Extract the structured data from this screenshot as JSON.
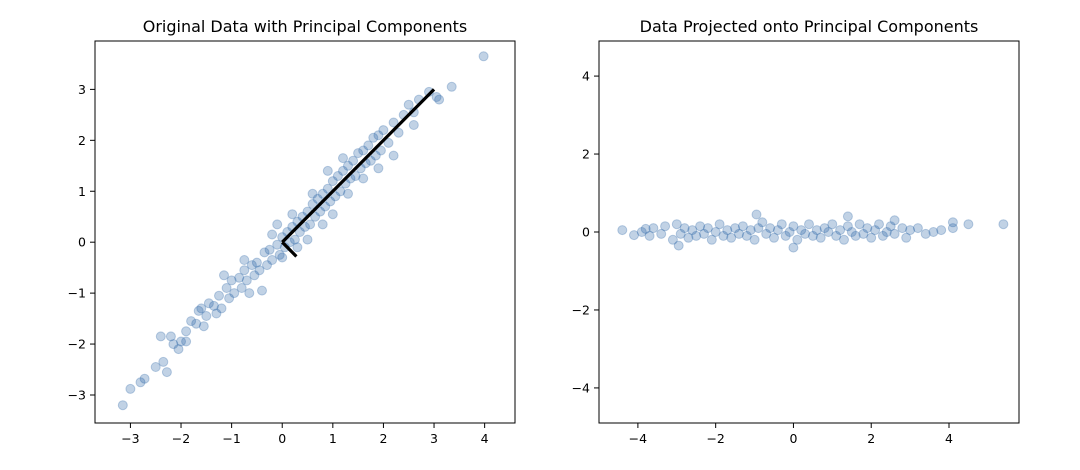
{
  "chart_data": [
    {
      "type": "scatter",
      "title": "Original Data with Principal Components",
      "xlabel": "",
      "ylabel": "",
      "xlim": [
        -3.7,
        4.6
      ],
      "ylim": [
        -3.55,
        3.95
      ],
      "xticks": [
        -3,
        -2,
        -1,
        0,
        1,
        2,
        3,
        4
      ],
      "yticks": [
        -3,
        -2,
        -1,
        0,
        1,
        2,
        3
      ],
      "xtick_labels": [
        "−3",
        "−2",
        "−1",
        "0",
        "1",
        "2",
        "3",
        "4"
      ],
      "ytick_labels": [
        "−3",
        "−2",
        "−1",
        "0",
        "1",
        "2",
        "3"
      ],
      "grid": false,
      "point_color": "#1f5fa0",
      "point_alpha": 0.28,
      "points": [
        [
          -3.15,
          -3.2
        ],
        [
          -3.0,
          -2.88
        ],
        [
          -2.8,
          -2.75
        ],
        [
          -2.72,
          -2.68
        ],
        [
          -2.5,
          -2.45
        ],
        [
          -2.35,
          -2.35
        ],
        [
          -2.28,
          -2.55
        ],
        [
          -2.4,
          -1.85
        ],
        [
          -2.2,
          -1.85
        ],
        [
          -2.05,
          -2.1
        ],
        [
          -2.0,
          -1.95
        ],
        [
          -1.9,
          -1.75
        ],
        [
          -1.8,
          -1.55
        ],
        [
          -1.7,
          -1.6
        ],
        [
          -1.6,
          -1.3
        ],
        [
          -1.5,
          -1.45
        ],
        [
          -1.45,
          -1.2
        ],
        [
          -1.35,
          -1.25
        ],
        [
          -1.25,
          -1.05
        ],
        [
          -1.2,
          -1.3
        ],
        [
          -1.1,
          -0.9
        ],
        [
          -1.05,
          -1.1
        ],
        [
          -1.0,
          -0.75
        ],
        [
          -0.95,
          -1.0
        ],
        [
          -0.85,
          -0.7
        ],
        [
          -0.8,
          -0.9
        ],
        [
          -0.75,
          -0.55
        ],
        [
          -0.7,
          -0.75
        ],
        [
          -0.6,
          -0.45
        ],
        [
          -0.55,
          -0.65
        ],
        [
          -0.5,
          -0.4
        ],
        [
          -0.45,
          -0.55
        ],
        [
          -0.35,
          -0.2
        ],
        [
          -0.3,
          -0.45
        ],
        [
          -0.25,
          -0.15
        ],
        [
          -0.2,
          -0.35
        ],
        [
          -0.1,
          -0.05
        ],
        [
          -0.05,
          -0.25
        ],
        [
          0.0,
          0.1
        ],
        [
          0.05,
          -0.1
        ],
        [
          0.1,
          0.2
        ],
        [
          0.15,
          0.0
        ],
        [
          0.2,
          0.3
        ],
        [
          0.25,
          0.05
        ],
        [
          0.3,
          0.4
        ],
        [
          0.35,
          0.2
        ],
        [
          0.4,
          0.5
        ],
        [
          0.45,
          0.3
        ],
        [
          0.5,
          0.6
        ],
        [
          0.55,
          0.35
        ],
        [
          0.6,
          0.75
        ],
        [
          0.65,
          0.5
        ],
        [
          0.7,
          0.85
        ],
        [
          0.75,
          0.6
        ],
        [
          0.8,
          0.95
        ],
        [
          0.85,
          0.7
        ],
        [
          0.9,
          1.05
        ],
        [
          0.95,
          0.8
        ],
        [
          1.0,
          1.2
        ],
        [
          1.05,
          0.9
        ],
        [
          1.1,
          1.3
        ],
        [
          1.15,
          1.0
        ],
        [
          1.2,
          1.4
        ],
        [
          1.25,
          1.15
        ],
        [
          1.3,
          1.5
        ],
        [
          1.35,
          1.25
        ],
        [
          1.4,
          1.6
        ],
        [
          1.45,
          1.3
        ],
        [
          1.5,
          1.75
        ],
        [
          1.55,
          1.45
        ],
        [
          1.6,
          1.8
        ],
        [
          1.65,
          1.55
        ],
        [
          1.7,
          1.9
        ],
        [
          1.75,
          1.6
        ],
        [
          1.8,
          2.05
        ],
        [
          1.85,
          1.7
        ],
        [
          1.9,
          2.1
        ],
        [
          1.95,
          1.8
        ],
        [
          2.0,
          2.2
        ],
        [
          2.1,
          1.95
        ],
        [
          2.2,
          2.35
        ],
        [
          2.3,
          2.15
        ],
        [
          2.4,
          2.5
        ],
        [
          2.5,
          2.7
        ],
        [
          2.6,
          2.55
        ],
        [
          2.7,
          2.8
        ],
        [
          2.9,
          2.95
        ],
        [
          3.05,
          2.85
        ],
        [
          3.1,
          2.8
        ],
        [
          3.35,
          3.05
        ],
        [
          3.98,
          3.65
        ],
        [
          -2.15,
          -2.0
        ],
        [
          -1.9,
          -1.95
        ],
        [
          -1.65,
          -1.35
        ],
        [
          -1.55,
          -1.65
        ],
        [
          -1.3,
          -1.4
        ],
        [
          -0.65,
          -1.0
        ],
        [
          -0.4,
          -0.95
        ],
        [
          -0.1,
          0.35
        ],
        [
          0.2,
          0.55
        ],
        [
          0.5,
          0.05
        ],
        [
          0.8,
          0.35
        ],
        [
          1.3,
          0.95
        ],
        [
          1.6,
          1.25
        ],
        [
          0.6,
          0.95
        ],
        [
          1.0,
          0.55
        ],
        [
          -0.2,
          0.15
        ],
        [
          0.0,
          -0.3
        ],
        [
          -0.75,
          -0.35
        ],
        [
          -1.15,
          -0.65
        ],
        [
          0.3,
          -0.1
        ],
        [
          2.2,
          1.7
        ],
        [
          2.6,
          2.3
        ],
        [
          1.9,
          1.45
        ],
        [
          1.2,
          1.65
        ],
        [
          0.9,
          1.4
        ]
      ],
      "components": [
        {
          "name": "",
          "from": [
            0.0,
            0.0
          ],
          "to": [
            3.0,
            3.0
          ],
          "color": "#000000"
        },
        {
          "name": "",
          "from": [
            0.0,
            0.0
          ],
          "to": [
            0.28,
            -0.28
          ],
          "color": "#000000"
        }
      ]
    },
    {
      "type": "scatter",
      "title": "Data Projected onto Principal Components",
      "xlabel": "",
      "ylabel": "",
      "xlim": [
        -5.0,
        5.8
      ],
      "ylim": [
        -4.9,
        4.9
      ],
      "xticks": [
        -4,
        -2,
        0,
        2,
        4
      ],
      "yticks": [
        -4,
        -2,
        0,
        2,
        4
      ],
      "xtick_labels": [
        "−4",
        "−2",
        "0",
        "2",
        "4"
      ],
      "ytick_labels": [
        "−4",
        "−2",
        "0",
        "2",
        "4"
      ],
      "grid": false,
      "point_color": "#1f5fa0",
      "point_alpha": 0.28,
      "points": [
        [
          -4.4,
          0.05
        ],
        [
          -4.1,
          -0.08
        ],
        [
          -3.9,
          0.0
        ],
        [
          -3.7,
          -0.1
        ],
        [
          -3.6,
          0.1
        ],
        [
          -3.4,
          -0.05
        ],
        [
          -3.3,
          0.15
        ],
        [
          -3.1,
          -0.2
        ],
        [
          -3.0,
          0.2
        ],
        [
          -2.9,
          -0.05
        ],
        [
          -2.8,
          0.1
        ],
        [
          -2.7,
          -0.15
        ],
        [
          -2.6,
          0.05
        ],
        [
          -2.5,
          -0.1
        ],
        [
          -2.4,
          0.15
        ],
        [
          -2.3,
          -0.05
        ],
        [
          -2.2,
          0.1
        ],
        [
          -2.1,
          -0.2
        ],
        [
          -2.0,
          0.0
        ],
        [
          -1.9,
          0.2
        ],
        [
          -1.8,
          -0.1
        ],
        [
          -1.7,
          0.05
        ],
        [
          -1.6,
          -0.15
        ],
        [
          -1.5,
          0.1
        ],
        [
          -1.4,
          -0.05
        ],
        [
          -1.3,
          0.15
        ],
        [
          -1.2,
          -0.1
        ],
        [
          -1.1,
          0.05
        ],
        [
          -1.0,
          -0.2
        ],
        [
          -0.9,
          0.1
        ],
        [
          -0.8,
          0.25
        ],
        [
          -0.7,
          -0.05
        ],
        [
          -0.6,
          0.1
        ],
        [
          -0.5,
          -0.15
        ],
        [
          -0.4,
          0.05
        ],
        [
          -0.3,
          0.2
        ],
        [
          -0.2,
          -0.1
        ],
        [
          -0.1,
          0.0
        ],
        [
          0.0,
          0.15
        ],
        [
          0.1,
          -0.2
        ],
        [
          0.2,
          0.05
        ],
        [
          0.3,
          -0.05
        ],
        [
          0.4,
          0.2
        ],
        [
          0.5,
          -0.1
        ],
        [
          0.6,
          0.05
        ],
        [
          0.7,
          -0.15
        ],
        [
          0.8,
          0.1
        ],
        [
          0.9,
          0.0
        ],
        [
          1.0,
          0.2
        ],
        [
          1.1,
          -0.1
        ],
        [
          1.2,
          0.05
        ],
        [
          1.3,
          -0.2
        ],
        [
          1.4,
          0.15
        ],
        [
          1.5,
          0.0
        ],
        [
          1.6,
          -0.1
        ],
        [
          1.7,
          0.2
        ],
        [
          1.8,
          -0.05
        ],
        [
          1.9,
          0.1
        ],
        [
          2.0,
          -0.15
        ],
        [
          2.1,
          0.05
        ],
        [
          2.2,
          0.2
        ],
        [
          2.3,
          -0.1
        ],
        [
          2.4,
          0.0
        ],
        [
          2.5,
          0.15
        ],
        [
          2.6,
          -0.05
        ],
        [
          2.8,
          0.1
        ],
        [
          2.9,
          -0.15
        ],
        [
          3.0,
          0.05
        ],
        [
          3.2,
          0.1
        ],
        [
          3.4,
          -0.05
        ],
        [
          3.6,
          0.0
        ],
        [
          3.8,
          0.05
        ],
        [
          4.1,
          0.1
        ],
        [
          4.1,
          0.25
        ],
        [
          4.5,
          0.2
        ],
        [
          5.4,
          0.2
        ],
        [
          -3.8,
          0.08
        ],
        [
          -2.95,
          -0.35
        ],
        [
          -0.95,
          0.45
        ],
        [
          1.4,
          0.4
        ],
        [
          2.6,
          0.3
        ],
        [
          0.0,
          -0.4
        ]
      ]
    }
  ]
}
